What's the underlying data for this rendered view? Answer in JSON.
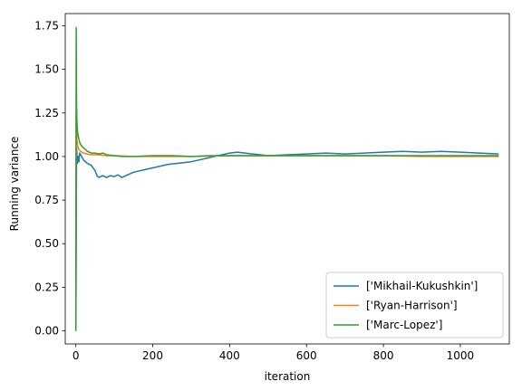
{
  "chart_data": {
    "type": "line",
    "title": "",
    "xlabel": "iteration",
    "ylabel": "Running variance",
    "xlim": [
      -27.5,
      1127.5
    ],
    "ylim": [
      -0.075,
      1.82
    ],
    "xticks": [
      0,
      200,
      400,
      600,
      800,
      1000
    ],
    "yticks": [
      0.0,
      0.25,
      0.5,
      0.75,
      1.0,
      1.25,
      1.5,
      1.75
    ],
    "grid": false,
    "legend_position": "bottom-right",
    "series": [
      {
        "name": "['Mikhail-Kukushkin']",
        "color": "#1f77b4",
        "x": [
          0,
          2,
          4,
          6,
          8,
          10,
          15,
          20,
          25,
          30,
          40,
          50,
          55,
          60,
          70,
          80,
          90,
          100,
          110,
          120,
          130,
          140,
          150,
          160,
          170,
          180,
          190,
          200,
          220,
          240,
          260,
          280,
          300,
          320,
          340,
          360,
          380,
          400,
          420,
          440,
          460,
          480,
          500,
          550,
          600,
          650,
          700,
          750,
          800,
          850,
          900,
          950,
          1000,
          1050,
          1100
        ],
        "y": [
          0.0,
          1.05,
          0.96,
          1.0,
          0.97,
          1.02,
          1.0,
          0.98,
          0.97,
          0.96,
          0.95,
          0.92,
          0.89,
          0.88,
          0.89,
          0.88,
          0.89,
          0.885,
          0.895,
          0.88,
          0.89,
          0.9,
          0.91,
          0.915,
          0.92,
          0.925,
          0.93,
          0.935,
          0.945,
          0.955,
          0.96,
          0.965,
          0.97,
          0.98,
          0.99,
          1.0,
          1.01,
          1.02,
          1.025,
          1.02,
          1.015,
          1.01,
          1.005,
          1.01,
          1.015,
          1.02,
          1.015,
          1.02,
          1.025,
          1.03,
          1.025,
          1.03,
          1.025,
          1.02,
          1.015
        ]
      },
      {
        "name": "['Ryan-Harrison']",
        "color": "#ff7f0e",
        "x": [
          0,
          1,
          2,
          3,
          5,
          8,
          12,
          20,
          30,
          40,
          60,
          80,
          100,
          150,
          200,
          300,
          400,
          500,
          600,
          700,
          800,
          900,
          1000,
          1100
        ],
        "y": [
          0.0,
          1.27,
          1.15,
          1.1,
          1.06,
          1.04,
          1.03,
          1.02,
          1.015,
          1.01,
          1.01,
          1.005,
          1.005,
          1.0,
          1.0,
          1.0,
          1.005,
          1.005,
          1.005,
          1.005,
          1.005,
          1.0,
          1.0,
          1.0
        ]
      },
      {
        "name": "['Marc-Lopez']",
        "color": "#2ca02c",
        "x": [
          0,
          1,
          2,
          3,
          4,
          6,
          8,
          10,
          15,
          20,
          25,
          30,
          40,
          50,
          60,
          70,
          80,
          100,
          120,
          150,
          200,
          250,
          300,
          350,
          400,
          500,
          600,
          700,
          800,
          900,
          1000,
          1100
        ],
        "y": [
          0.0,
          1.74,
          1.3,
          1.2,
          1.15,
          1.12,
          1.1,
          1.08,
          1.06,
          1.05,
          1.04,
          1.03,
          1.02,
          1.02,
          1.015,
          1.02,
          1.01,
          1.005,
          1.0,
          1.0,
          1.005,
          1.005,
          1.0,
          1.005,
          1.005,
          1.005,
          1.005,
          1.005,
          1.005,
          1.005,
          1.005,
          1.005
        ]
      }
    ]
  }
}
